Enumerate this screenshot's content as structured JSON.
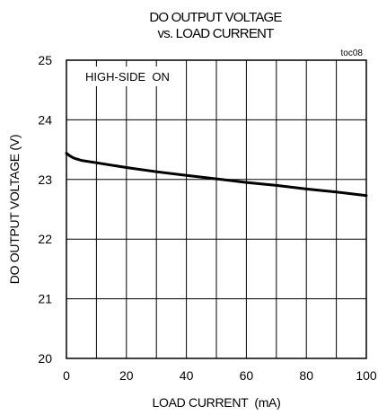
{
  "chart_data": {
    "type": "line",
    "title": "DO OUTPUT VOLTAGE",
    "subtitle": "vs. LOAD CURRENT",
    "tag": "toc08",
    "annotation": "HIGH-SIDE  ON",
    "xlabel": "LOAD CURRENT  (mA)",
    "ylabel": "DO OUTPUT VOLTAGE (V)",
    "xlim": [
      0,
      100
    ],
    "ylim": [
      20,
      25
    ],
    "xticks": [
      0,
      20,
      40,
      60,
      80,
      100
    ],
    "yticks": [
      20,
      21,
      22,
      23,
      24,
      25
    ],
    "grid": true,
    "x_minor_grid_step": 10,
    "series": [
      {
        "color": "#000000",
        "x": [
          0,
          1,
          2,
          3,
          5,
          10,
          20,
          30,
          40,
          50,
          60,
          70,
          80,
          90,
          100
        ],
        "y": [
          23.44,
          23.4,
          23.37,
          23.35,
          23.32,
          23.28,
          23.2,
          23.13,
          23.07,
          23.01,
          22.95,
          22.9,
          22.84,
          22.79,
          22.73
        ]
      }
    ]
  }
}
